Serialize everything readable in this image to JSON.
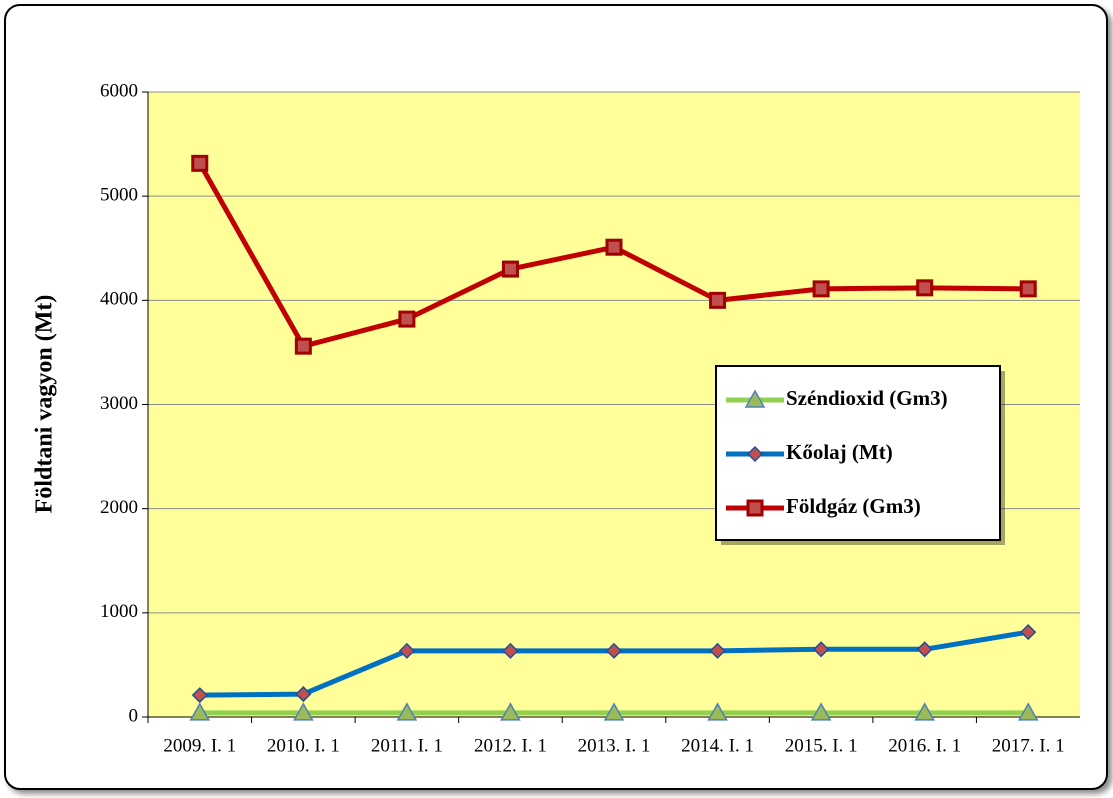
{
  "chart_data": {
    "type": "line",
    "y_label": "Földtani vagyon (Mt)",
    "categories": [
      "2009. I. 1",
      "2010. I. 1",
      "2011. I. 1",
      "2012. I. 1",
      "2013. I. 1",
      "2014. I. 1",
      "2015. I. 1",
      "2016. I. 1",
      "2017. I. 1"
    ],
    "series": [
      {
        "name": "Széndioxid (Gm3)",
        "color": "#92d050",
        "marker": "triangle",
        "values": [
          40,
          40,
          40,
          40,
          40,
          40,
          40,
          40,
          40
        ]
      },
      {
        "name": "Kőolaj (Mt)",
        "color": "#0070c0",
        "marker": "diamond",
        "values": [
          210,
          220,
          635,
          635,
          635,
          635,
          650,
          650,
          815
        ]
      },
      {
        "name": "Földgáz (Gm3)",
        "color": "#c00000",
        "marker": "square",
        "values": [
          5315,
          3560,
          3820,
          4300,
          4510,
          4000,
          4110,
          4120,
          4110
        ]
      }
    ],
    "ylim": [
      0,
      6000
    ],
    "yticks": [
      0,
      1000,
      2000,
      3000,
      4000,
      5000,
      6000
    ],
    "grid": true,
    "legend": "right"
  }
}
